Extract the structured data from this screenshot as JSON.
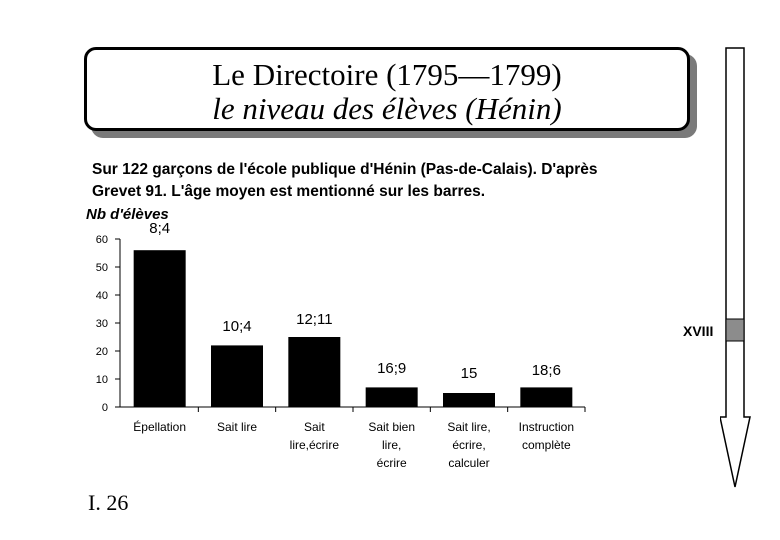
{
  "title": {
    "line1": "Le Directoire (1795—1799)",
    "line2": "le niveau des élèves (Hénin)"
  },
  "subtitle": {
    "line1": "Sur 122 garçons de l'école publique d'Hénin (Pas-de-Calais). D'après",
    "line2": "Grevet 91. L'âge moyen est mentionné sur les barres."
  },
  "chart_data": {
    "type": "bar",
    "ylabel": "Nb d'élèves",
    "ylim": [
      0,
      60
    ],
    "yticks": [
      0,
      10,
      20,
      30,
      40,
      50,
      60
    ],
    "categories": [
      [
        "Épellation"
      ],
      [
        "Sait lire"
      ],
      [
        "Sait",
        "lire,écrire"
      ],
      [
        "Sait bien",
        "lire,",
        "écrire"
      ],
      [
        "Sait lire,",
        "écrire,",
        "calculer"
      ],
      [
        "Instruction",
        "complète"
      ]
    ],
    "values": [
      56,
      22,
      25,
      7,
      5,
      7
    ],
    "bar_labels": [
      "8;4",
      "10;4",
      "12;11",
      "16;9",
      "15",
      "18;6"
    ],
    "colors": {
      "bar": "#000000",
      "axis": "#000000"
    }
  },
  "timeline": {
    "label": "XVIII",
    "marker_color": "#8c8c8c"
  },
  "page_number": "I. 26"
}
